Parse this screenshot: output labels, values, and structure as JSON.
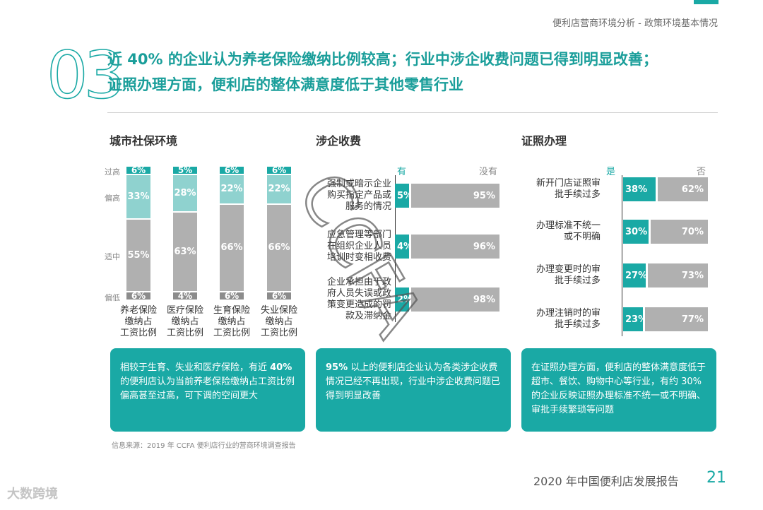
{
  "header": {
    "meta": "便利店营商环境分析 - 政策环境基本情况"
  },
  "section_number": "03",
  "headline": {
    "line1": "近 40% 的企业认为养老保险缴纳比例较高；行业中涉企收费问题已得到明显改善；",
    "line2": "证照办理方面，便利店的整体满意度低于其他零售行业"
  },
  "social": {
    "title": "城市社保环境",
    "row_labels": [
      "过高",
      "偏高",
      "适中",
      "偏低"
    ],
    "colors": {
      "too_high": "#1aa9a5",
      "high": "#8fd2cf",
      "moderate": "#b0b0b0",
      "low": "#8c8c8c"
    },
    "bars": [
      {
        "caption": [
          "养老保险",
          "缴纳占",
          "工资比例"
        ],
        "too_high": 6,
        "high": 33,
        "moderate": 55,
        "low": 6,
        "labels": {
          "too_high": "6%",
          "high": "33%",
          "moderate": "55%",
          "low": "6%"
        }
      },
      {
        "caption": [
          "医疗保险",
          "缴纳占",
          "工资比例"
        ],
        "too_high": 5,
        "high": 28,
        "moderate": 63,
        "low": 4,
        "labels": {
          "too_high": "5%",
          "high": "28%",
          "moderate": "63%",
          "low": "4%"
        }
      },
      {
        "caption": [
          "生育保险",
          "缴纳占",
          "工资比例"
        ],
        "too_high": 6,
        "high": 22,
        "moderate": 66,
        "low": 6,
        "labels": {
          "too_high": "6%",
          "high": "22%",
          "moderate": "66%",
          "low": "6%"
        }
      },
      {
        "caption": [
          "失业保险",
          "缴纳占",
          "工资比例"
        ],
        "too_high": 6,
        "high": 22,
        "moderate": 66,
        "low": 6,
        "labels": {
          "too_high": "6%",
          "high": "22%",
          "moderate": "66%",
          "low": "6%"
        }
      }
    ],
    "summary_parts": [
      "相较于生育、失业和医疗保险，有近 ",
      "40%",
      " 的便利店认为当前养老保险缴纳占工资比例偏高甚至过高，可下调的空间更大"
    ]
  },
  "fees": {
    "title": "涉企收费",
    "yes_label": "有",
    "no_label": "没有",
    "items": [
      {
        "lines": [
          "强制或暗示企业",
          "购买指定产品或",
          "服务的情况"
        ],
        "yes": 5,
        "no": 95,
        "yes_text": "5%",
        "no_text": "95%"
      },
      {
        "lines": [
          "应急管理等部门",
          "在组织企业人员",
          "培训时变相收费"
        ],
        "yes": 4,
        "no": 96,
        "yes_text": "4%",
        "no_text": "96%"
      },
      {
        "lines": [
          "企业承担由于政",
          "府人员失误或政",
          "策变更造成的罚",
          "款及滞纳金"
        ],
        "yes": 2,
        "no": 98,
        "yes_text": "2%",
        "no_text": "98%"
      }
    ],
    "summary_parts": [
      "95%",
      " 以上的便利店企业认为各类涉企收费情况已经不再出现，行业中涉企收费问题已得到明显改善"
    ]
  },
  "license": {
    "title": "证照办理",
    "yes_label": "是",
    "no_label": "否",
    "items": [
      {
        "lines": [
          "新开门店证照审",
          "批手续过多"
        ],
        "yes": 38,
        "no": 62,
        "yes_text": "38%",
        "no_text": "62%"
      },
      {
        "lines": [
          "办理标准不统一",
          "或不明确"
        ],
        "yes": 30,
        "no": 70,
        "yes_text": "30%",
        "no_text": "70%"
      },
      {
        "lines": [
          "办理变更时的审",
          "批手续过多"
        ],
        "yes": 27,
        "no": 73,
        "yes_text": "27%",
        "no_text": "73%"
      },
      {
        "lines": [
          "办理注销时的审",
          "批手续过多"
        ],
        "yes": 23,
        "no": 77,
        "yes_text": "23%",
        "no_text": "77%"
      }
    ],
    "summary": "在证照办理方面，便利店的整体满意度低于超市、餐饮、购物中心等行业，有约 30% 的企业反映证照办理标准不统一或不明确、审批手续繁琐等问题"
  },
  "source": "信息来源：2019 年 CCFA 便利店行业的营商环境调查报告",
  "footer": {
    "title": "2020 年中国便利店发展报告",
    "page": "21"
  },
  "watermark": "CCFA",
  "brand": "大数跨境"
}
